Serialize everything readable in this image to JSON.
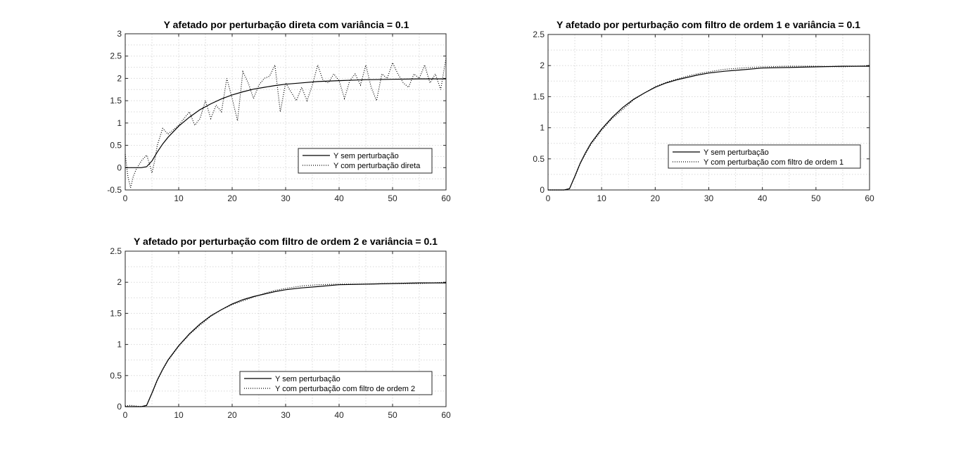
{
  "figure": {
    "background": "#ffffff",
    "line_color": "#000000",
    "grid_color": "#d8d8d8"
  },
  "chart_data": [
    {
      "type": "line",
      "title": "Y afetado por perturbação direta com variância = 0.1",
      "xlabel": "",
      "ylabel": "",
      "xlim": [
        0,
        60
      ],
      "ylim": [
        -0.5,
        3
      ],
      "xticks": [
        0,
        10,
        20,
        30,
        40,
        50,
        60
      ],
      "yticks": [
        -0.5,
        0,
        0.5,
        1,
        1.5,
        2,
        2.5,
        3
      ],
      "grid": true,
      "legend_position": "bottom-right",
      "series": [
        {
          "name": "Y sem perturbação",
          "style": "solid",
          "x": [
            0,
            3,
            4,
            5,
            6,
            7,
            8,
            10,
            12,
            14,
            16,
            18,
            20,
            22,
            24,
            26,
            28,
            30,
            33,
            36,
            40,
            45,
            50,
            55,
            60
          ],
          "y": [
            0,
            0,
            0.02,
            0.15,
            0.35,
            0.53,
            0.68,
            0.93,
            1.13,
            1.3,
            1.43,
            1.54,
            1.63,
            1.7,
            1.76,
            1.8,
            1.84,
            1.87,
            1.9,
            1.93,
            1.95,
            1.97,
            1.98,
            1.99,
            1.99
          ]
        },
        {
          "name": "Y com perturbação direta",
          "style": "dotted",
          "x": [
            0,
            0.5,
            1,
            1.5,
            2,
            3,
            4,
            4.5,
            5,
            5.5,
            6,
            7,
            8,
            9,
            10,
            11,
            12,
            13,
            14,
            15,
            16,
            17,
            18,
            19,
            20,
            21,
            22,
            23,
            24,
            25,
            26,
            27,
            28,
            29,
            30,
            31,
            32,
            33,
            34,
            35,
            36,
            37,
            38,
            39,
            40,
            41,
            42,
            43,
            44,
            45,
            46,
            47,
            48,
            49,
            50,
            51,
            52,
            53,
            54,
            55,
            56,
            57,
            58,
            59,
            60
          ],
          "y": [
            0.3,
            -0.2,
            -0.45,
            -0.2,
            -0.05,
            0.15,
            0.28,
            0.1,
            -0.12,
            0.15,
            0.5,
            0.88,
            0.75,
            0.85,
            0.95,
            1.1,
            1.25,
            0.95,
            1.1,
            1.5,
            1.1,
            1.4,
            1.25,
            2.0,
            1.55,
            1.05,
            2.15,
            1.9,
            1.55,
            1.85,
            2.0,
            2.05,
            2.3,
            1.25,
            1.9,
            1.7,
            1.5,
            1.8,
            1.5,
            1.85,
            2.3,
            1.95,
            1.9,
            2.1,
            1.95,
            1.55,
            1.95,
            2.1,
            1.85,
            2.3,
            1.8,
            1.5,
            2.1,
            2.0,
            2.35,
            2.1,
            1.9,
            1.8,
            2.1,
            2.0,
            2.3,
            1.9,
            2.1,
            1.75,
            2.45
          ]
        }
      ]
    },
    {
      "type": "line",
      "title": "Y afetado por perturbação com filtro de ordem 1 e variância = 0.1",
      "xlabel": "",
      "ylabel": "",
      "xlim": [
        0,
        60
      ],
      "ylim": [
        0,
        2.5
      ],
      "xticks": [
        0,
        10,
        20,
        30,
        40,
        50,
        60
      ],
      "yticks": [
        0,
        0.5,
        1,
        1.5,
        2,
        2.5
      ],
      "grid": true,
      "legend_position": "bottom-right",
      "series": [
        {
          "name": "Y sem perturbação",
          "style": "solid",
          "x": [
            0,
            3,
            4,
            5,
            6,
            7,
            8,
            10,
            12,
            14,
            16,
            18,
            20,
            22,
            24,
            26,
            28,
            30,
            33,
            36,
            40,
            45,
            50,
            55,
            60
          ],
          "y": [
            0,
            0,
            0.02,
            0.22,
            0.43,
            0.6,
            0.75,
            0.98,
            1.17,
            1.33,
            1.46,
            1.56,
            1.65,
            1.72,
            1.77,
            1.81,
            1.85,
            1.88,
            1.91,
            1.93,
            1.96,
            1.97,
            1.98,
            1.99,
            1.99
          ]
        },
        {
          "name": "Y com perturbação com filtro de ordem 1",
          "style": "dotted",
          "x": [
            0,
            3,
            4,
            5,
            6,
            7,
            8,
            10,
            12,
            14,
            16,
            18,
            20,
            22,
            24,
            26,
            28,
            30,
            33,
            36,
            40,
            45,
            50,
            55,
            60
          ],
          "y": [
            0,
            0,
            0.02,
            0.21,
            0.42,
            0.58,
            0.73,
            0.96,
            1.15,
            1.3,
            1.45,
            1.56,
            1.66,
            1.73,
            1.78,
            1.83,
            1.87,
            1.9,
            1.94,
            1.96,
            1.98,
            1.99,
            1.99,
            1.98,
            2.0
          ]
        }
      ]
    },
    {
      "type": "line",
      "title": "Y afetado por perturbação com filtro de ordem 2 e variância = 0.1",
      "xlabel": "",
      "ylabel": "",
      "xlim": [
        0,
        60
      ],
      "ylim": [
        0,
        2.5
      ],
      "xticks": [
        0,
        10,
        20,
        30,
        40,
        50,
        60
      ],
      "yticks": [
        0,
        0.5,
        1,
        1.5,
        2,
        2.5
      ],
      "grid": true,
      "legend_position": "bottom-right",
      "series": [
        {
          "name": "Y sem perturbação",
          "style": "solid",
          "x": [
            0,
            3,
            4,
            5,
            6,
            7,
            8,
            10,
            12,
            14,
            16,
            18,
            20,
            22,
            24,
            26,
            28,
            30,
            33,
            36,
            40,
            45,
            50,
            55,
            60
          ],
          "y": [
            0,
            0,
            0.02,
            0.22,
            0.43,
            0.6,
            0.75,
            0.98,
            1.17,
            1.33,
            1.46,
            1.56,
            1.65,
            1.72,
            1.77,
            1.81,
            1.85,
            1.88,
            1.91,
            1.93,
            1.96,
            1.97,
            1.98,
            1.99,
            1.99
          ]
        },
        {
          "name": "Y com perturbação com filtro de ordem 2",
          "style": "dotted",
          "x": [
            0,
            1,
            2,
            3,
            4,
            5,
            6,
            7,
            8,
            10,
            12,
            14,
            16,
            18,
            20,
            22,
            24,
            26,
            28,
            30,
            33,
            36,
            40,
            45,
            50,
            55,
            60
          ],
          "y": [
            0.01,
            0.02,
            0.01,
            0.0,
            0.02,
            0.21,
            0.42,
            0.59,
            0.74,
            0.97,
            1.16,
            1.31,
            1.45,
            1.56,
            1.64,
            1.7,
            1.76,
            1.82,
            1.87,
            1.9,
            1.94,
            1.96,
            1.97,
            1.97,
            1.98,
            1.98,
            2.0
          ]
        }
      ]
    }
  ]
}
